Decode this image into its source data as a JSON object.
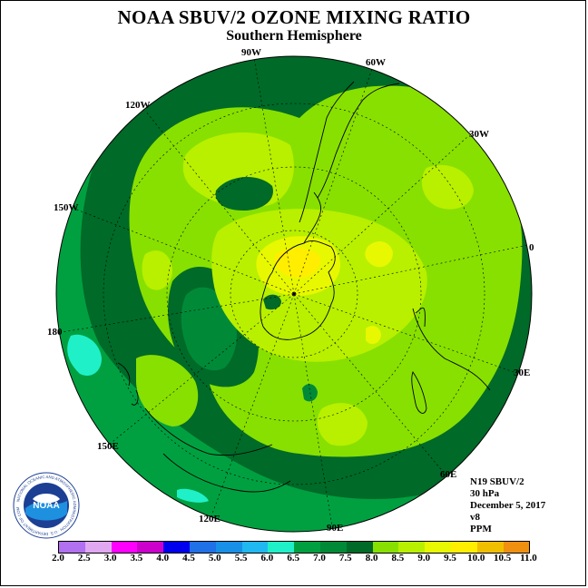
{
  "header": {
    "title": "NOAA SBUV/2 OZONE MIXING RATIO",
    "subtitle": "Southern Hemisphere"
  },
  "longitude_labels": {
    "w90": "90W",
    "w60": "60W",
    "w120": "120W",
    "w30": "30W",
    "w150": "150W",
    "e0": "0",
    "e180": "180",
    "e30": "30E",
    "e150": "150E",
    "e60": "60E",
    "e120": "120E",
    "e90": "90E"
  },
  "info": {
    "satellite": "N19 SBUV/2",
    "level": "30 hPa",
    "date": "December 5, 2017",
    "version": "v8",
    "units": "PPM"
  },
  "logo": {
    "text": "NOAA",
    "ring_text": "NATIONAL OCEANIC AND ATMOSPHERIC ADMINISTRATION · U.S. DEPARTMENT OF COMMERCE"
  },
  "colorbar": {
    "labels": [
      "2.0",
      "2.5",
      "3.0",
      "3.5",
      "4.0",
      "4.5",
      "5.0",
      "5.5",
      "6.0",
      "6.5",
      "7.0",
      "7.5",
      "8.0",
      "8.5",
      "9.0",
      "9.5",
      "10.0",
      "10.5",
      "11.0"
    ],
    "colors": [
      "#b070f0",
      "#e0a8f0",
      "#ff00ff",
      "#cc00cc",
      "#0000ee",
      "#2070e8",
      "#1890e8",
      "#20b8f0",
      "#20f0c8",
      "#00a040",
      "#008a38",
      "#006a28",
      "#88e000",
      "#b8f000",
      "#e8f800",
      "#ffee00",
      "#f0c000",
      "#f09010",
      "#f06010",
      "#ee1010",
      "#804020"
    ]
  },
  "map_style": {
    "background": "#ffffff",
    "ocean_default": "#00a040",
    "dark_band": "#006a28",
    "mid_band": "#008a38",
    "light_green": "#88e000",
    "yellow_green": "#b8f000",
    "yellow": "#e8f800",
    "bright_yellow": "#ffee00",
    "cyan": "#20f0c8"
  }
}
